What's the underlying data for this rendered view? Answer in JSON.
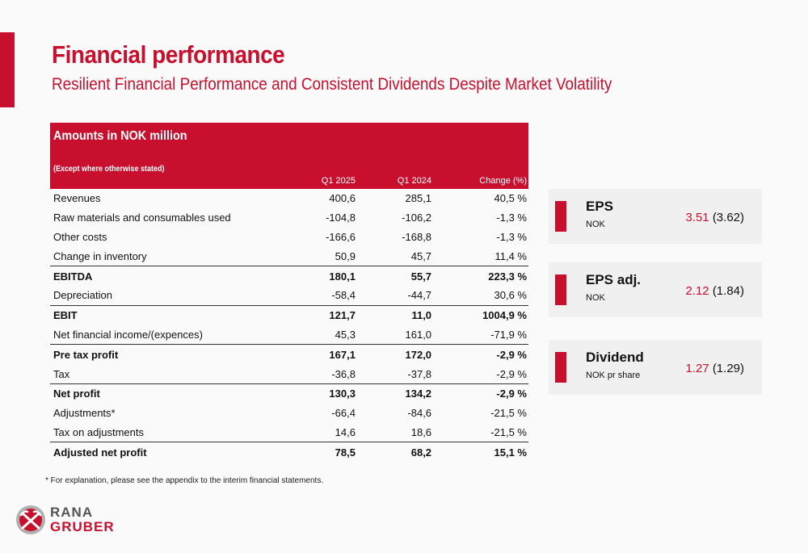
{
  "header": {
    "title": "Financial performance",
    "subtitle": "Resilient Financial Performance and Consistent Dividends Despite Market Volatility"
  },
  "table": {
    "heading": "Amounts in NOK million",
    "subheading": "(Except where otherwise stated)",
    "columns": [
      "Q1 2025",
      "Q1 2024",
      "Change (%)"
    ],
    "rows": [
      {
        "label": "Revenues",
        "q1_2025": "400,6",
        "q1_2024": "285,1",
        "change": "40,5 %"
      },
      {
        "label": "Raw materials and consumables used",
        "q1_2025": "-104,8",
        "q1_2024": "-106,2",
        "change": "-1,3 %"
      },
      {
        "label": "Other costs",
        "q1_2025": "-166,6",
        "q1_2024": "-168,8",
        "change": "-1,3 %"
      },
      {
        "label": "Change in inventory",
        "q1_2025": "50,9",
        "q1_2024": "45,7",
        "change": "11,4 %"
      },
      {
        "label": "EBITDA",
        "q1_2025": "180,1",
        "q1_2024": "55,7",
        "change": "223,3 %"
      },
      {
        "label": "Depreciation",
        "q1_2025": "-58,4",
        "q1_2024": "-44,7",
        "change": "30,6 %"
      },
      {
        "label": "EBIT",
        "q1_2025": "121,7",
        "q1_2024": "11,0",
        "change": "1004,9 %"
      },
      {
        "label": "Net financial income/(expences)",
        "q1_2025": "45,3",
        "q1_2024": "161,0",
        "change": "-71,9 %"
      },
      {
        "label": "Pre tax profit",
        "q1_2025": "167,1",
        "q1_2024": "172,0",
        "change": "-2,9 %"
      },
      {
        "label": "Tax",
        "q1_2025": "-36,8",
        "q1_2024": "-37,8",
        "change": "-2,9 %"
      },
      {
        "label": "Net profit",
        "q1_2025": "130,3",
        "q1_2024": "134,2",
        "change": "-2,9 %"
      },
      {
        "label": "Adjustments*",
        "q1_2025": "-66,4",
        "q1_2024": "-84,6",
        "change": "-21,5 %"
      },
      {
        "label": "Tax on adjustments",
        "q1_2025": "14,6",
        "q1_2024": "18,6",
        "change": "-21,5 %"
      },
      {
        "label": "Adjusted net profit",
        "q1_2025": "78,5",
        "q1_2024": "68,2",
        "change": "15,1 %"
      }
    ]
  },
  "footnote": "* For explanation, please see the appendix to the interim financial statements.",
  "kpis": [
    {
      "name": "EPS",
      "unit": "NOK",
      "current": "3.51",
      "previous": "(3.62)"
    },
    {
      "name": "EPS adj.",
      "unit": "NOK",
      "current": "2.12",
      "previous": "(1.84)"
    },
    {
      "name": "Dividend",
      "unit": "NOK pr share",
      "current": "1.27",
      "previous": "(1.29)"
    }
  ],
  "logo": {
    "line1": "RANA",
    "line2": "GRUBER"
  },
  "colors": {
    "accent": "#c8102e",
    "kpi_bg": "#f0f0f0"
  }
}
